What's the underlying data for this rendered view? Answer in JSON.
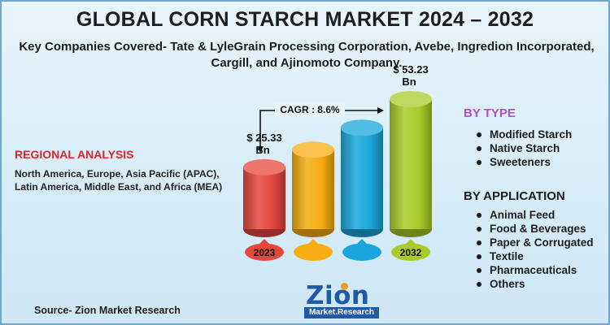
{
  "title": "GLOBAL CORN STARCH MARKET 2024 – 2032",
  "subtitle": "Key Companies Covered- Tate & LyleGrain Processing Corporation, Avebe, Ingredion Incorporated, Cargill, and Ajinomoto Company.",
  "regional": {
    "heading": "REGIONAL ANALYSIS",
    "text": "North America, Europe, Asia Pacific (APAC), Latin America, Middle East, and Africa (MEA)"
  },
  "by_type": {
    "heading": "BY TYPE",
    "items": [
      "Modified Starch",
      "Native Starch",
      "Sweeteners"
    ]
  },
  "by_application": {
    "heading": "BY APPLICATION",
    "items": [
      "Animal Feed",
      "Food & Beverages",
      "Paper & Corrugated",
      "Textile",
      "Pharmaceuticals",
      "Others"
    ]
  },
  "source": "Source- Zion Market Research",
  "logo": {
    "main": "Zion",
    "sub": "Market.Research"
  },
  "colors": {
    "red": "#e5473d",
    "orange": "#f7ad13",
    "blue": "#1aa6dc",
    "green": "#a9cb2a",
    "region_heading": "#d7262a",
    "type_heading": "#b14fc8"
  },
  "chart_data": {
    "type": "bar",
    "categories": [
      "2023",
      "",
      "",
      "2032"
    ],
    "values": [
      25.33,
      32.5,
      41.5,
      53.23
    ],
    "data_labels": [
      "$ 25.33 Bn",
      "",
      "",
      "$ 53.23 Bn"
    ],
    "cagr_label": "CAGR : 8.6%",
    "ylim": [
      0,
      60
    ]
  }
}
